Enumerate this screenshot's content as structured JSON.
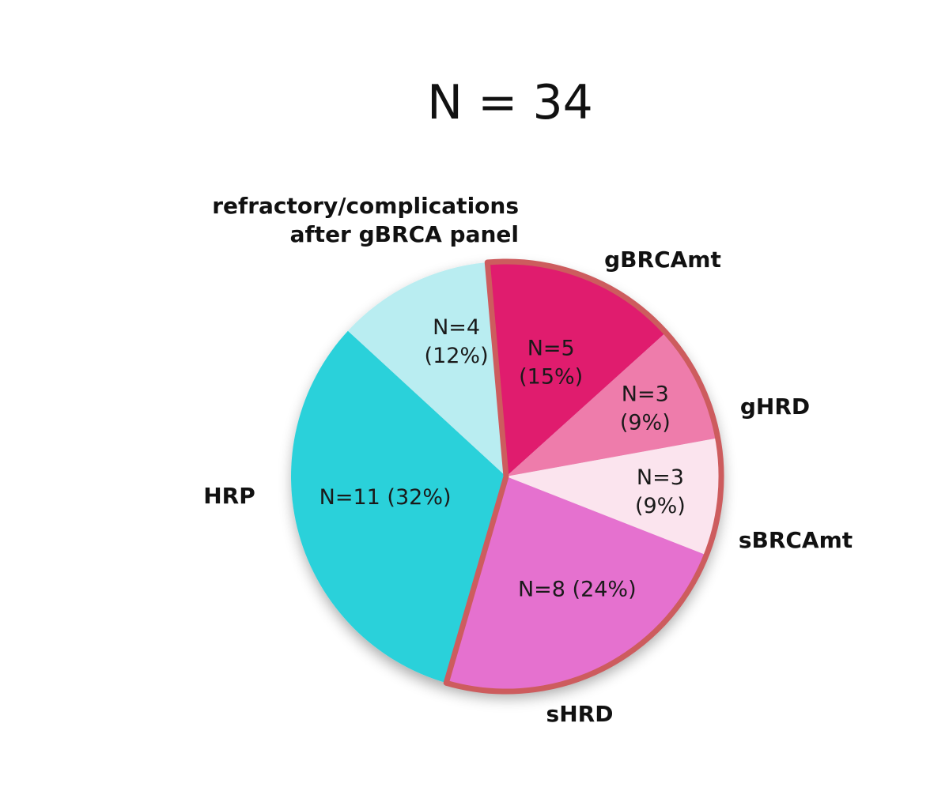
{
  "chart_data": {
    "type": "pie",
    "title": "N = 34",
    "total": 34,
    "slices": [
      {
        "name": "gBRCAmt",
        "value": 5,
        "percent": 15,
        "color": "#e01a6e",
        "inner_label_lines": [
          "N=5",
          "(15%)"
        ],
        "highlighted": true
      },
      {
        "name": "gHRD",
        "value": 3,
        "percent": 9,
        "color": "#ee7bab",
        "inner_label_lines": [
          "N=3",
          "(9%)"
        ],
        "highlighted": true
      },
      {
        "name": "sBRCAmt",
        "value": 3,
        "percent": 9,
        "color": "#fbe4ee",
        "inner_label_lines": [
          "N=3",
          "(9%)"
        ],
        "highlighted": true
      },
      {
        "name": "sHRD",
        "value": 8,
        "percent": 24,
        "color": "#e571cf",
        "inner_label_lines": [
          "N=8 (24%)"
        ],
        "highlighted": true
      },
      {
        "name": "HRP",
        "value": 11,
        "percent": 32,
        "color": "#2bd1da",
        "inner_label_lines": [
          "N=11 (32%)"
        ],
        "highlighted": false
      },
      {
        "name": "refractory/complications after gBRCA panel",
        "value": 4,
        "percent": 12,
        "color": "#b9edf1",
        "inner_label_lines": [
          "N=4",
          "(12%)"
        ],
        "highlighted": false
      }
    ],
    "category_label_lines": [
      [
        "gBRCAmt"
      ],
      [
        "gHRD"
      ],
      [
        "sBRCAmt"
      ],
      [
        "sHRD"
      ],
      [
        "HRP"
      ],
      [
        "refractory/complications",
        "after gBRCA panel"
      ]
    ],
    "highlight_outline_color": "#cd5c5e"
  }
}
